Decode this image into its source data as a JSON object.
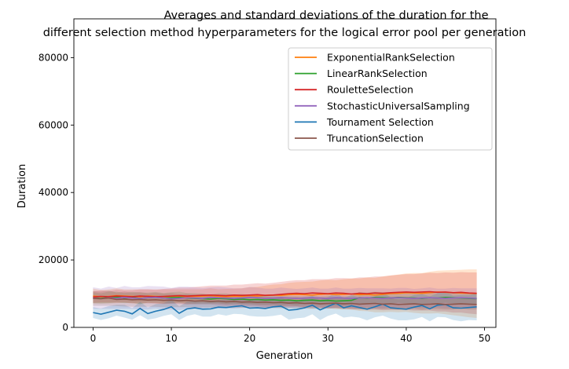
{
  "chart_data": {
    "type": "line",
    "title": "Averages and standard deviations of the duration for the\ndifferent selection method hyperparameters for the logical error pool per generation",
    "xlabel": "Generation",
    "ylabel": "Duration",
    "xlim": [
      -2.45,
      51.45
    ],
    "ylim": [
      0,
      91500
    ],
    "xticks": [
      0,
      10,
      20,
      30,
      40,
      50
    ],
    "yticks": [
      0,
      20000,
      40000,
      60000,
      80000
    ],
    "ytick_labels": [
      "0",
      "20000",
      "40000",
      "60000",
      "80000"
    ],
    "legend_position": "upper right",
    "grid": false,
    "series": [
      {
        "name": "ExponentialRankSelection",
        "color": "#ff7f0e",
        "mean": [
          9300,
          9100,
          9200,
          9400,
          9300,
          9200,
          9100,
          9300,
          9200,
          9100,
          9200,
          9300,
          9100,
          9200,
          9300,
          9400,
          9200,
          9100,
          9300,
          9200,
          9400,
          9300,
          9500,
          9600,
          9500,
          9700,
          9800,
          9700,
          9600,
          9800,
          9900,
          9700,
          9800,
          9900,
          9700,
          9800,
          9600,
          9800,
          10000,
          10100,
          10300,
          10200,
          10100,
          10300,
          10500,
          10400,
          10300,
          10200,
          10100,
          10000
        ],
        "std": [
          2200,
          2000,
          2100,
          2200,
          2000,
          2100,
          2200,
          2000,
          2100,
          2200,
          2100,
          2000,
          2200,
          2100,
          2000,
          2200,
          2100,
          2300,
          2200,
          2400,
          2500,
          2700,
          2900,
          3100,
          3300,
          3500,
          3600,
          3800,
          4000,
          4100,
          4200,
          4300,
          4500,
          4600,
          4800,
          5000,
          5100,
          5300,
          5400,
          5600,
          5700,
          5900,
          6000,
          6200,
          6300,
          6500,
          6700,
          6900,
          7100,
          7200
        ]
      },
      {
        "name": "LinearRankSelection",
        "color": "#2ca02c",
        "mean": [
          8800,
          8600,
          8900,
          9000,
          8700,
          8900,
          8600,
          8800,
          8900,
          8700,
          8800,
          8900,
          8700,
          8600,
          8500,
          8400,
          8600,
          8500,
          8300,
          8400,
          8200,
          8300,
          8100,
          8200,
          8000,
          8100,
          7900,
          8000,
          8100,
          7900,
          8000,
          7800,
          7900,
          8000,
          8800,
          8700,
          8900,
          8800,
          8700,
          8900,
          8800,
          8700,
          8600,
          8800,
          8700,
          8900,
          8800,
          8700,
          8600,
          8500
        ],
        "std": [
          1600,
          1500,
          1700,
          1600,
          1500,
          1600,
          1700,
          1500,
          1600,
          1500,
          1600,
          1700,
          1500,
          1600,
          1500,
          1400,
          1500,
          1600,
          1400,
          1500,
          1400,
          1500,
          1400,
          1300,
          1400,
          1300,
          1400,
          1300,
          1400,
          1300,
          1400,
          1300,
          1400,
          1300,
          1700,
          1600,
          1700,
          1600,
          1700,
          1600,
          1700,
          1600,
          1700,
          1600,
          1700,
          1600,
          1700,
          1600,
          1700,
          1600
        ]
      },
      {
        "name": "RouletteSelection",
        "color": "#d62728",
        "mean": [
          9000,
          9200,
          9100,
          9300,
          9200,
          9100,
          9300,
          9200,
          9100,
          9200,
          9300,
          9400,
          9300,
          9400,
          9500,
          9600,
          9500,
          9400,
          9600,
          9500,
          9600,
          9700,
          9500,
          9600,
          9800,
          10000,
          10100,
          10000,
          10200,
          10100,
          10000,
          10200,
          10100,
          9900,
          10100,
          10000,
          10200,
          10100,
          10300,
          10400,
          10500,
          10400,
          10500,
          10600,
          10400,
          10500,
          10300,
          10400,
          10200,
          10100
        ],
        "std": [
          1700,
          1800,
          1700,
          1900,
          1800,
          1900,
          2000,
          2100,
          2000,
          2200,
          2300,
          2400,
          2500,
          2600,
          2700,
          2800,
          2900,
          3000,
          3100,
          3200,
          3300,
          3400,
          3500,
          3600,
          3700,
          3800,
          3900,
          4000,
          4100,
          4200,
          4300,
          4400,
          4500,
          4600,
          4700,
          4800,
          4900,
          5000,
          5100,
          5200,
          5300,
          5400,
          5500,
          5600,
          5700,
          5800,
          5900,
          6000,
          6100,
          6200
        ]
      },
      {
        "name": "StochasticUniversalSampling",
        "color": "#9467bd",
        "mean": [
          8700,
          8500,
          8800,
          8600,
          8900,
          8700,
          8600,
          8800,
          8900,
          8700,
          8500,
          8600,
          8800,
          8700,
          8600,
          8900,
          8800,
          8700,
          8600,
          8700,
          8900,
          8800,
          8600,
          8700,
          8800,
          8700,
          8600,
          8700,
          8800,
          8700,
          8600,
          8800,
          8700,
          8600,
          8700,
          8800,
          8700,
          8600,
          8700,
          8800,
          8700,
          8600,
          8700,
          8800,
          8700,
          8600,
          8700,
          8800,
          8700,
          8600
        ],
        "std": [
          3200,
          3000,
          3300,
          3100,
          3400,
          3200,
          3300,
          3500,
          3300,
          3400,
          3200,
          3500,
          3300,
          3200,
          3100,
          3000,
          3200,
          3100,
          3000,
          2900,
          3100,
          3000,
          2900,
          2800,
          3000,
          2900,
          2800,
          2900,
          3000,
          2800,
          2900,
          3000,
          2800,
          2900,
          3000,
          2800,
          2900,
          3000,
          2800,
          2900,
          3000,
          2800,
          2900,
          3000,
          2800,
          2900,
          3000,
          2800,
          2900,
          3000
        ]
      },
      {
        "name": "Tournament Selection",
        "color": "#1f77b4",
        "mean": [
          4400,
          3900,
          4500,
          5100,
          4800,
          4000,
          5600,
          4100,
          4800,
          5300,
          6100,
          4200,
          5500,
          5800,
          5400,
          5500,
          6000,
          5900,
          6200,
          6400,
          5700,
          5800,
          5600,
          6100,
          6300,
          5100,
          5300,
          5800,
          6600,
          5200,
          6200,
          7200,
          5800,
          6400,
          5900,
          5400,
          6100,
          6900,
          5800,
          5600,
          5400,
          6000,
          6500,
          5500,
          6600,
          6800,
          5800,
          5700,
          5900,
          6100
        ],
        "std": [
          1600,
          1700,
          1800,
          1600,
          1900,
          1700,
          2000,
          1800,
          2100,
          1900,
          2200,
          2000,
          2100,
          1900,
          2200,
          2300,
          2100,
          2400,
          2200,
          2500,
          2300,
          2600,
          2400,
          2700,
          2500,
          2800,
          2600,
          2900,
          2700,
          3000,
          2800,
          3100,
          2900,
          3200,
          3000,
          3300,
          3100,
          3400,
          3200,
          3500,
          3300,
          3600,
          3400,
          3700,
          3500,
          3800,
          3600,
          3900,
          3700,
          4000
        ]
      },
      {
        "name": "TruncationSelection",
        "color": "#8c564b",
        "mean": [
          8600,
          8500,
          8700,
          8300,
          8400,
          8200,
          8300,
          8100,
          8200,
          8000,
          8100,
          7900,
          8000,
          7800,
          7900,
          7700,
          7800,
          7600,
          7700,
          7500,
          7600,
          7400,
          7500,
          7300,
          7400,
          7200,
          7300,
          7100,
          7200,
          7000,
          7100,
          7200,
          7000,
          7100,
          6900,
          7000,
          7100,
          6900,
          7000,
          6800,
          6900,
          7000,
          6800,
          6900,
          7000,
          6800,
          6900,
          7000,
          6900,
          6800
        ],
        "std": [
          2200,
          2100,
          2300,
          2000,
          2200,
          2100,
          2200,
          2000,
          2100,
          2000,
          2100,
          1900,
          2000,
          1900,
          2000,
          1800,
          1900,
          1800,
          1900,
          1700,
          1800,
          1700,
          1800,
          1600,
          1700,
          1600,
          1700,
          1600,
          1700,
          1500,
          1600,
          1500,
          1600,
          1500,
          1600,
          1500,
          1600,
          1500,
          1600,
          1500,
          1600,
          1500,
          1600,
          1500,
          1600,
          1500,
          1600,
          1500,
          1600,
          1500
        ]
      }
    ]
  }
}
